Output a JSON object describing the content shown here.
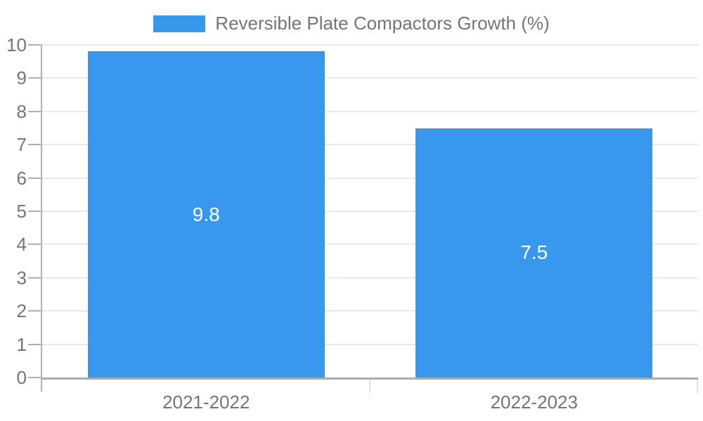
{
  "legend": {
    "label": "Reversible Plate Compactors Growth (%)",
    "position": "top"
  },
  "chart_data": {
    "type": "bar",
    "title": "",
    "categories": [
      "2021-2022",
      "2022-2023"
    ],
    "series": [
      {
        "name": "Reversible Plate Compactors Growth (%)",
        "values": [
          9.8,
          7.5
        ]
      }
    ],
    "value_labels": [
      "9.8",
      "7.5"
    ],
    "xlabel": "",
    "ylabel": "",
    "ylim": [
      0,
      10
    ],
    "ytick_step": 1,
    "yticks": [
      "0",
      "1",
      "2",
      "3",
      "4",
      "5",
      "6",
      "7",
      "8",
      "9",
      "10"
    ],
    "grid": true,
    "legend_position": "top"
  },
  "colors": {
    "bar": "#3899EC",
    "value_label": "#ffffff",
    "axis_text": "#757575",
    "gridline": "#e9e9e9",
    "axis_line": "#b0b0b0",
    "baseline": "#ababab",
    "boundary_tick": "#e2e2e2",
    "background": "#ffffff"
  }
}
